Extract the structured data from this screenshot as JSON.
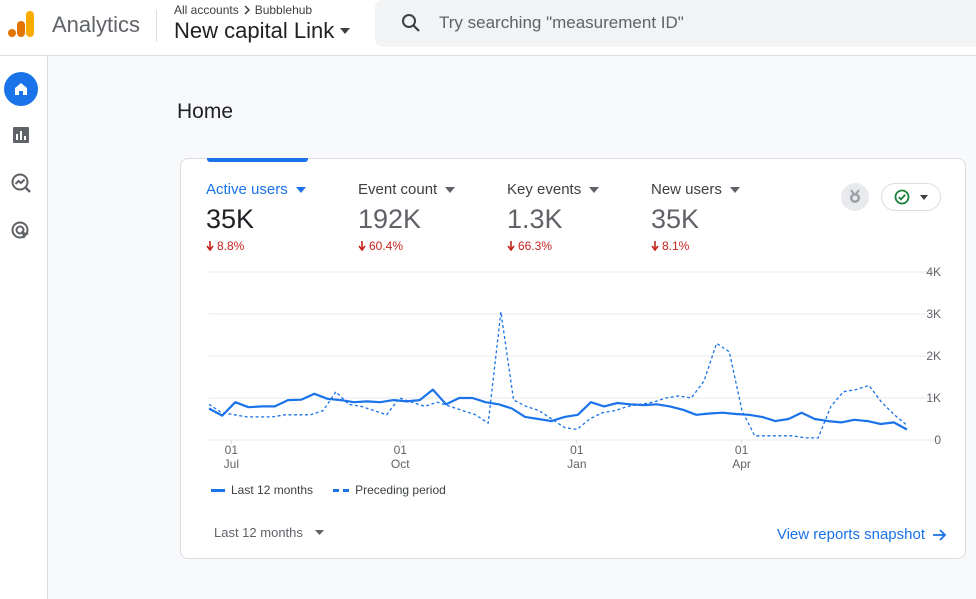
{
  "header": {
    "app_name": "Analytics",
    "breadcrumb_root": "All accounts",
    "breadcrumb_account": "Bubblehub",
    "property_name": "New capital Link",
    "search_placeholder": "Try searching \"measurement ID\""
  },
  "nav": {
    "items": [
      "home-icon",
      "reports-icon",
      "explore-icon",
      "advertising-icon"
    ],
    "active": "home-icon"
  },
  "page": {
    "title": "Home"
  },
  "metrics": [
    {
      "label": "Active users",
      "value": "35K",
      "change": "8.8%",
      "active": true
    },
    {
      "label": "Event count",
      "value": "192K",
      "change": "60.4%",
      "active": false
    },
    {
      "label": "Key events",
      "value": "1.3K",
      "change": "66.3%",
      "active": false
    },
    {
      "label": "New users",
      "value": "35K",
      "change": "8.1%",
      "active": false
    }
  ],
  "colors": {
    "accent": "#1a73e8",
    "negative": "#c5221f",
    "positive": "#188038"
  },
  "chart_data": {
    "type": "line",
    "y_ticks": [
      "4K",
      "3K",
      "2K",
      "1K",
      "0"
    ],
    "x_ticks": [
      {
        "day": "01",
        "month": "Jul"
      },
      {
        "day": "01",
        "month": "Oct"
      },
      {
        "day": "01",
        "month": "Jan"
      },
      {
        "day": "01",
        "month": "Apr"
      }
    ],
    "ylim": [
      0,
      4000
    ],
    "series": [
      {
        "name": "Last 12 months",
        "style": "solid",
        "values": [
          750,
          580,
          900,
          780,
          800,
          800,
          950,
          960,
          1100,
          980,
          950,
          900,
          920,
          900,
          950,
          920,
          950,
          1200,
          850,
          1000,
          1000,
          900,
          850,
          750,
          550,
          500,
          450,
          550,
          600,
          900,
          800,
          880,
          850,
          830,
          850,
          800,
          720,
          600,
          630,
          650,
          620,
          600,
          550,
          450,
          500,
          650,
          500,
          450,
          420,
          480,
          450,
          380,
          420,
          250
        ]
      },
      {
        "name": "Preceding period",
        "style": "dashed",
        "values": [
          850,
          650,
          600,
          550,
          550,
          550,
          600,
          600,
          600,
          700,
          1150,
          850,
          800,
          700,
          600,
          1000,
          900,
          800,
          900,
          800,
          700,
          600,
          400,
          3050,
          950,
          800,
          700,
          500,
          300,
          250,
          500,
          650,
          700,
          800,
          850,
          900,
          1000,
          1050,
          1000,
          1400,
          2300,
          2100,
          700,
          100,
          100,
          100,
          100,
          50,
          50,
          800,
          1150,
          1200,
          1300,
          900,
          600,
          350
        ]
      }
    ]
  },
  "legend": {
    "current": "Last 12 months",
    "previous": "Preceding period"
  },
  "footer": {
    "range_label": "Last 12 months",
    "link_label": "View reports snapshot"
  }
}
